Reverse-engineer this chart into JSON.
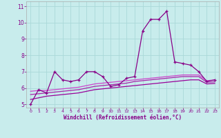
{
  "x": [
    0,
    1,
    2,
    3,
    4,
    5,
    6,
    7,
    8,
    9,
    10,
    11,
    12,
    13,
    14,
    15,
    16,
    17,
    18,
    19,
    20,
    21,
    22,
    23
  ],
  "line1": [
    5.0,
    5.9,
    5.7,
    7.0,
    6.5,
    6.4,
    6.5,
    7.0,
    7.0,
    6.7,
    6.1,
    6.2,
    6.6,
    6.7,
    9.5,
    10.2,
    10.2,
    10.7,
    7.6,
    7.5,
    7.4,
    7.0,
    6.4,
    6.5
  ],
  "line2": [
    5.8,
    5.85,
    5.85,
    5.9,
    5.95,
    6.0,
    6.05,
    6.15,
    6.25,
    6.3,
    6.35,
    6.4,
    6.45,
    6.5,
    6.55,
    6.6,
    6.65,
    6.7,
    6.75,
    6.8,
    6.8,
    6.8,
    6.45,
    6.5
  ],
  "line3": [
    5.6,
    5.65,
    5.7,
    5.75,
    5.8,
    5.85,
    5.9,
    6.0,
    6.1,
    6.15,
    6.2,
    6.25,
    6.3,
    6.4,
    6.45,
    6.5,
    6.55,
    6.6,
    6.65,
    6.7,
    6.7,
    6.7,
    6.35,
    6.38
  ],
  "line4": [
    5.3,
    5.4,
    5.5,
    5.55,
    5.6,
    5.65,
    5.7,
    5.8,
    5.9,
    5.95,
    6.0,
    6.05,
    6.1,
    6.15,
    6.2,
    6.25,
    6.3,
    6.35,
    6.4,
    6.45,
    6.5,
    6.5,
    6.25,
    6.28
  ],
  "bg_color": "#c8ecec",
  "line_color1": "#880088",
  "line_color2": "#cc44cc",
  "line_color3": "#aa22aa",
  "line_color4": "#990099",
  "grid_color": "#aad8d8",
  "xlabel": "Windchill (Refroidissement éolien,°C)",
  "ylim": [
    4.8,
    11.3
  ],
  "xlim": [
    -0.5,
    23.5
  ],
  "yticks": [
    5,
    6,
    7,
    8,
    9,
    10,
    11
  ],
  "xticks": [
    0,
    1,
    2,
    3,
    4,
    5,
    6,
    7,
    8,
    9,
    10,
    11,
    12,
    13,
    14,
    15,
    16,
    17,
    18,
    19,
    20,
    21,
    22,
    23
  ]
}
